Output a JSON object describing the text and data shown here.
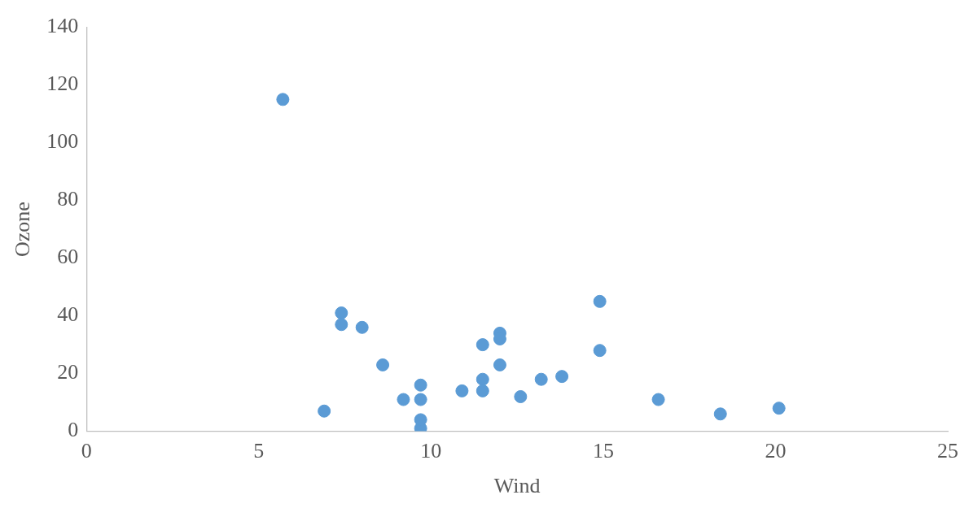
{
  "chart_data": {
    "type": "scatter",
    "xlabel": "Wind",
    "ylabel": "Ozone",
    "x": [
      7.4,
      8.0,
      12.6,
      11.5,
      14.9,
      8.6,
      13.8,
      20.1,
      6.9,
      9.7,
      9.2,
      10.9,
      13.2,
      11.5,
      12.0,
      18.4,
      11.5,
      9.7,
      9.7,
      16.6,
      9.7,
      12.0,
      12.0,
      14.9,
      5.7,
      7.4
    ],
    "values": [
      41,
      36,
      12,
      18,
      28,
      23,
      19,
      8,
      7,
      16,
      11,
      14,
      18,
      14,
      34,
      6,
      30,
      11,
      1,
      11,
      4,
      32,
      23,
      45,
      115,
      37
    ],
    "color": "#5b9bd5",
    "marker": "circle",
    "xlim": [
      0,
      25
    ],
    "xticks": [
      0,
      5,
      10,
      15,
      20,
      25
    ],
    "ylim": [
      0,
      140
    ],
    "yticks": [
      0,
      20,
      40,
      60,
      80,
      100,
      120,
      140
    ],
    "grid": false,
    "legend": false
  }
}
